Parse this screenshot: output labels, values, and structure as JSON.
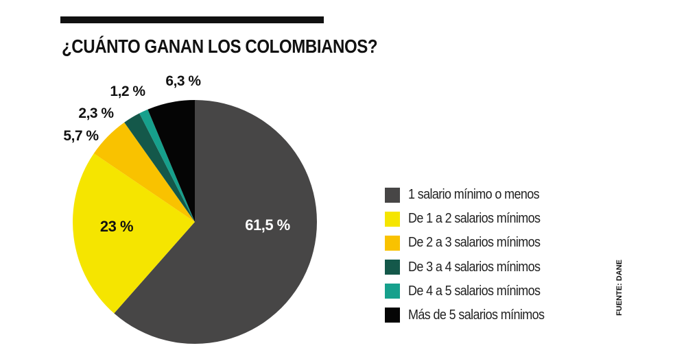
{
  "title": "¿CUÁNTO GANAN LOS COLOMBIANOS?",
  "source": "FUENTE: DANE",
  "chart_data": {
    "type": "pie",
    "title": "¿CUÁNTO GANAN LOS COLOMBIANOS?",
    "legend_position": "right",
    "slices": [
      {
        "label": "1 salario mínimo o menos",
        "value": 61.5,
        "display": "61,5 %",
        "color": "#474646"
      },
      {
        "label": "De 1 a 2 salarios mínimos",
        "value": 23,
        "display": "23 %",
        "color": "#f5e500"
      },
      {
        "label": "De 2 a 3 salarios mínimos",
        "value": 5.7,
        "display": "5,7 %",
        "color": "#f9c200"
      },
      {
        "label": "De 3 a 4 salarios mínimos",
        "value": 2.3,
        "display": "2,3 %",
        "color": "#14584a"
      },
      {
        "label": "De 4 a 5 salarios mínimos",
        "value": 1.2,
        "display": "1,2 %",
        "color": "#16a08c"
      },
      {
        "label": "Más de 5 salarios mínimos",
        "value": 6.3,
        "display": "6,3 %",
        "color": "#050505"
      }
    ]
  }
}
